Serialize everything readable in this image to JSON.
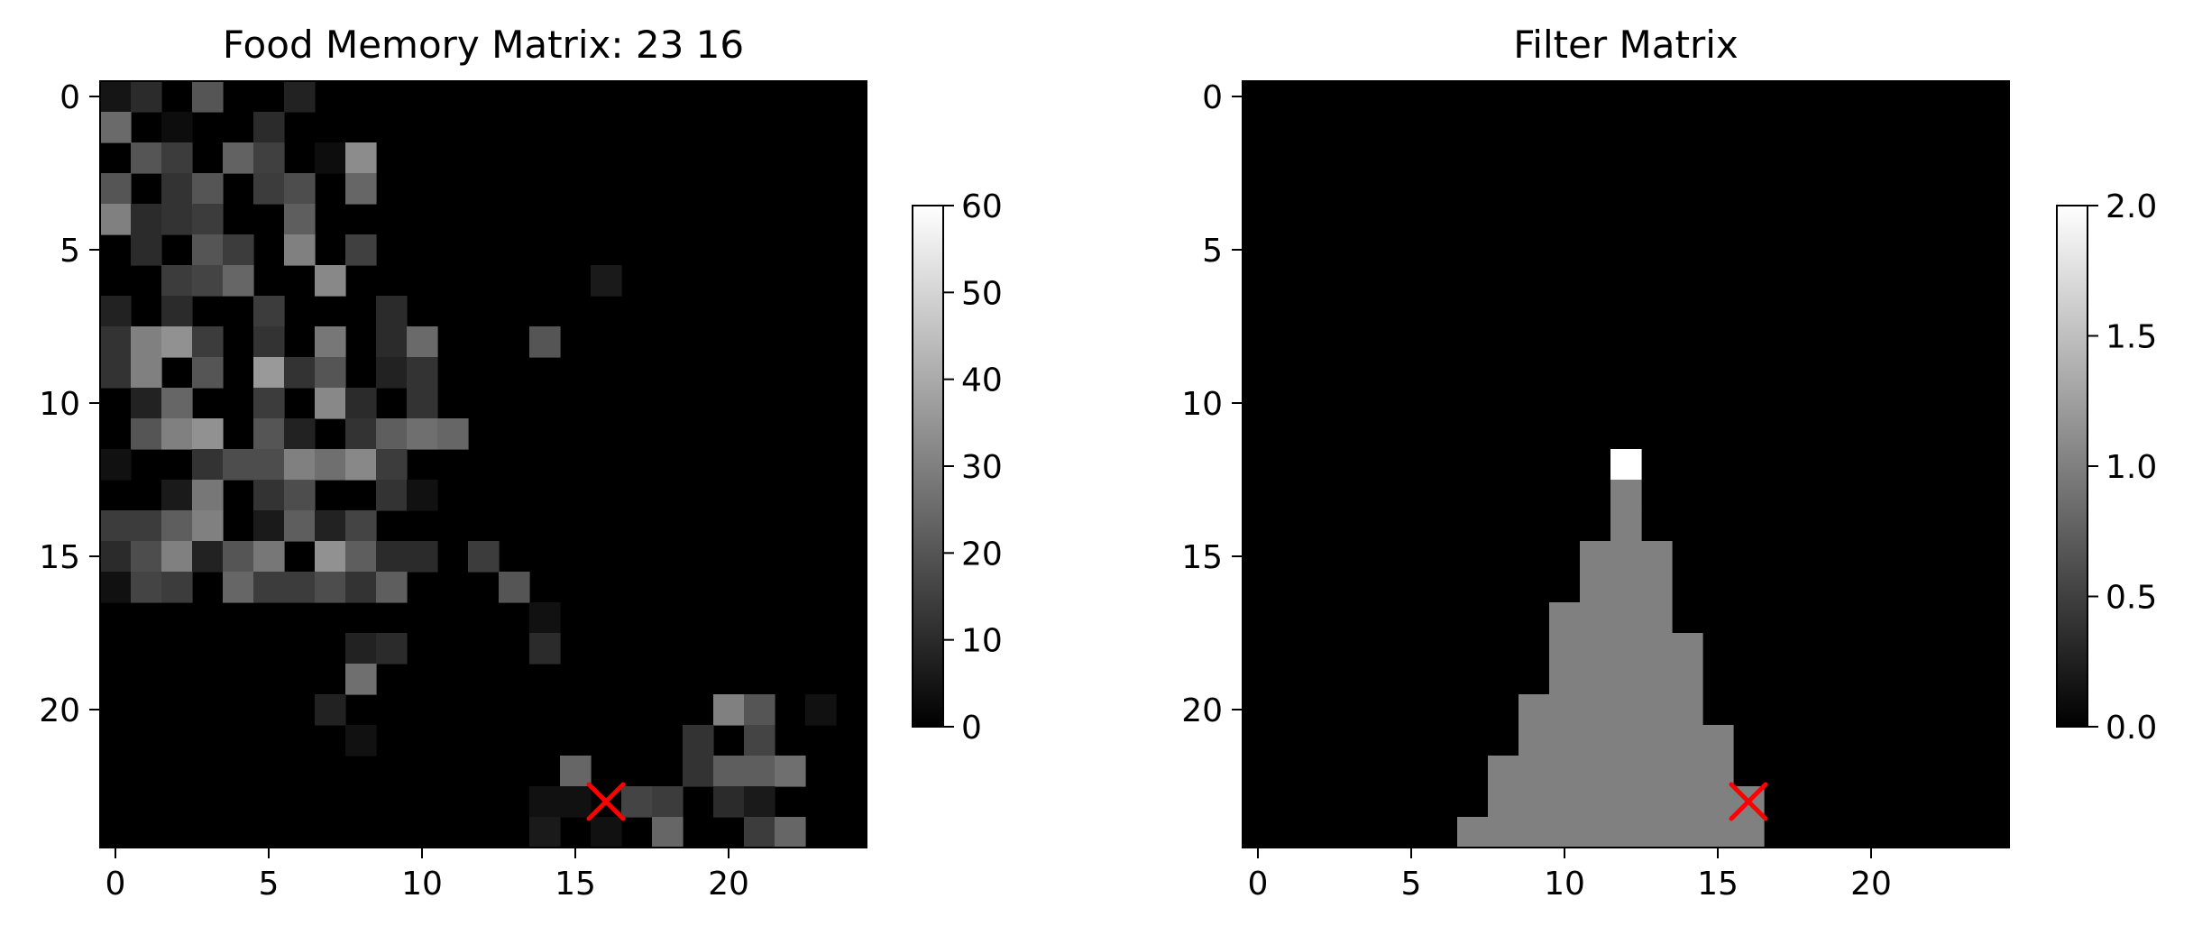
{
  "chart_data": [
    {
      "type": "heatmap",
      "title": "Food Memory Matrix: 23 16",
      "colormap": "gray",
      "rows": 25,
      "cols": 25,
      "xlim": [
        -0.5,
        24.5
      ],
      "ylim": [
        24.5,
        -0.5
      ],
      "xticks": [
        0,
        5,
        10,
        15,
        20
      ],
      "yticks": [
        0,
        5,
        10,
        15,
        20
      ],
      "colorbar": {
        "min": 0,
        "max": 60,
        "ticks": [
          "0",
          "10",
          "20",
          "30",
          "40",
          "50",
          "60"
        ]
      },
      "marker": {
        "row": 23,
        "col": 16,
        "symbol": "x",
        "color": "#ff0000"
      },
      "values": [
        [
          5,
          10,
          0,
          20,
          0,
          0,
          8,
          0,
          0,
          0,
          0,
          0,
          0,
          0,
          0,
          0,
          0,
          0,
          0,
          0,
          0,
          0,
          0,
          0,
          0
        ],
        [
          25,
          0,
          3,
          0,
          0,
          10,
          0,
          0,
          0,
          0,
          0,
          0,
          0,
          0,
          0,
          0,
          0,
          0,
          0,
          0,
          0,
          0,
          0,
          0,
          0
        ],
        [
          0,
          20,
          14,
          0,
          23,
          15,
          0,
          3,
          33,
          0,
          0,
          0,
          0,
          0,
          0,
          0,
          0,
          0,
          0,
          0,
          0,
          0,
          0,
          0,
          0
        ],
        [
          20,
          0,
          12,
          20,
          0,
          14,
          18,
          0,
          24,
          0,
          0,
          0,
          0,
          0,
          0,
          0,
          0,
          0,
          0,
          0,
          0,
          0,
          0,
          0,
          0
        ],
        [
          30,
          10,
          12,
          14,
          0,
          0,
          22,
          0,
          0,
          0,
          0,
          0,
          0,
          0,
          0,
          0,
          0,
          0,
          0,
          0,
          0,
          0,
          0,
          0,
          0
        ],
        [
          0,
          10,
          0,
          20,
          14,
          0,
          30,
          0,
          15,
          0,
          0,
          0,
          0,
          0,
          0,
          0,
          0,
          0,
          0,
          0,
          0,
          0,
          0,
          0,
          0
        ],
        [
          0,
          0,
          14,
          16,
          24,
          0,
          0,
          32,
          0,
          0,
          0,
          0,
          0,
          0,
          0,
          0,
          6,
          0,
          0,
          0,
          0,
          0,
          0,
          0,
          0
        ],
        [
          8,
          0,
          10,
          0,
          0,
          14,
          0,
          0,
          0,
          10,
          0,
          0,
          0,
          0,
          0,
          0,
          0,
          0,
          0,
          0,
          0,
          0,
          0,
          0,
          0
        ],
        [
          12,
          30,
          34,
          14,
          0,
          12,
          0,
          28,
          0,
          10,
          25,
          0,
          0,
          0,
          20,
          0,
          0,
          0,
          0,
          0,
          0,
          0,
          0,
          0,
          0
        ],
        [
          12,
          30,
          0,
          20,
          0,
          36,
          12,
          20,
          0,
          8,
          12,
          0,
          0,
          0,
          0,
          0,
          0,
          0,
          0,
          0,
          0,
          0,
          0,
          0,
          0
        ],
        [
          0,
          8,
          24,
          0,
          0,
          14,
          0,
          32,
          10,
          0,
          12,
          0,
          0,
          0,
          0,
          0,
          0,
          0,
          0,
          0,
          0,
          0,
          0,
          0,
          0
        ],
        [
          0,
          20,
          30,
          34,
          0,
          20,
          8,
          0,
          12,
          22,
          26,
          24,
          0,
          0,
          0,
          0,
          0,
          0,
          0,
          0,
          0,
          0,
          0,
          0,
          0
        ],
        [
          4,
          0,
          0,
          12,
          18,
          18,
          30,
          26,
          32,
          14,
          0,
          0,
          0,
          0,
          0,
          0,
          0,
          0,
          0,
          0,
          0,
          0,
          0,
          0,
          0
        ],
        [
          0,
          0,
          6,
          28,
          0,
          12,
          18,
          0,
          0,
          12,
          4,
          0,
          0,
          0,
          0,
          0,
          0,
          0,
          0,
          0,
          0,
          0,
          0,
          0,
          0
        ],
        [
          14,
          14,
          22,
          30,
          0,
          6,
          22,
          8,
          16,
          0,
          0,
          0,
          0,
          0,
          0,
          0,
          0,
          0,
          0,
          0,
          0,
          0,
          0,
          0,
          0
        ],
        [
          10,
          18,
          30,
          8,
          20,
          28,
          0,
          34,
          22,
          10,
          10,
          0,
          14,
          0,
          0,
          0,
          0,
          0,
          0,
          0,
          0,
          0,
          0,
          0,
          0
        ],
        [
          4,
          16,
          14,
          0,
          24,
          14,
          14,
          18,
          12,
          22,
          0,
          0,
          0,
          20,
          0,
          0,
          0,
          0,
          0,
          0,
          0,
          0,
          0,
          0,
          0
        ],
        [
          0,
          0,
          0,
          0,
          0,
          0,
          0,
          0,
          0,
          0,
          0,
          0,
          0,
          0,
          4,
          0,
          0,
          0,
          0,
          0,
          0,
          0,
          0,
          0,
          0
        ],
        [
          0,
          0,
          0,
          0,
          0,
          0,
          0,
          0,
          8,
          10,
          0,
          0,
          0,
          0,
          10,
          0,
          0,
          0,
          0,
          0,
          0,
          0,
          0,
          0,
          0
        ],
        [
          0,
          0,
          0,
          0,
          0,
          0,
          0,
          0,
          26,
          0,
          0,
          0,
          0,
          0,
          0,
          0,
          0,
          0,
          0,
          0,
          0,
          0,
          0,
          0,
          0
        ],
        [
          0,
          0,
          0,
          0,
          0,
          0,
          0,
          8,
          0,
          0,
          0,
          0,
          0,
          0,
          0,
          0,
          0,
          0,
          0,
          0,
          30,
          20,
          0,
          4,
          0
        ],
        [
          0,
          0,
          0,
          0,
          0,
          0,
          0,
          0,
          4,
          0,
          0,
          0,
          0,
          0,
          0,
          0,
          0,
          0,
          0,
          12,
          0,
          16,
          0,
          0,
          0
        ],
        [
          0,
          0,
          0,
          0,
          0,
          0,
          0,
          0,
          0,
          0,
          0,
          0,
          0,
          0,
          0,
          24,
          0,
          0,
          0,
          12,
          22,
          22,
          26,
          0,
          0
        ],
        [
          0,
          0,
          0,
          0,
          0,
          0,
          0,
          0,
          0,
          0,
          0,
          0,
          0,
          0,
          4,
          4,
          0,
          16,
          14,
          0,
          10,
          6,
          0,
          0,
          0
        ],
        [
          0,
          0,
          0,
          0,
          0,
          0,
          0,
          0,
          0,
          0,
          0,
          0,
          0,
          0,
          6,
          0,
          4,
          0,
          24,
          0,
          0,
          14,
          24,
          0,
          0
        ]
      ]
    },
    {
      "type": "heatmap",
      "title": "Filter Matrix",
      "colormap": "gray",
      "rows": 25,
      "cols": 25,
      "xlim": [
        -0.5,
        24.5
      ],
      "ylim": [
        24.5,
        -0.5
      ],
      "xticks": [
        0,
        5,
        10,
        15,
        20
      ],
      "yticks": [
        0,
        5,
        10,
        15,
        20
      ],
      "colorbar": {
        "min": 0,
        "max": 2,
        "ticks": [
          "0.0",
          "0.5",
          "1.0",
          "1.5",
          "2.0"
        ]
      },
      "marker": {
        "row": 23,
        "col": 16,
        "symbol": "x",
        "color": "#ff0000"
      },
      "apex": {
        "row": 12,
        "col": 12,
        "value": 2
      },
      "triangle_rows": [
        {
          "row": 12,
          "from": 12,
          "to": 12,
          "value": 2
        },
        {
          "row": 13,
          "from": 12,
          "to": 12,
          "value": 1
        },
        {
          "row": 14,
          "from": 12,
          "to": 12,
          "value": 1
        },
        {
          "row": 15,
          "from": 11,
          "to": 13,
          "value": 1
        },
        {
          "row": 16,
          "from": 11,
          "to": 13,
          "value": 1
        },
        {
          "row": 17,
          "from": 10,
          "to": 13,
          "value": 1
        },
        {
          "row": 18,
          "from": 10,
          "to": 14,
          "value": 1
        },
        {
          "row": 19,
          "from": 10,
          "to": 14,
          "value": 1
        },
        {
          "row": 20,
          "from": 9,
          "to": 14,
          "value": 1
        },
        {
          "row": 21,
          "from": 9,
          "to": 15,
          "value": 1
        },
        {
          "row": 22,
          "from": 8,
          "to": 15,
          "value": 1
        },
        {
          "row": 23,
          "from": 8,
          "to": 16,
          "value": 1
        },
        {
          "row": 24,
          "from": 7,
          "to": 16,
          "value": 1
        }
      ]
    }
  ]
}
